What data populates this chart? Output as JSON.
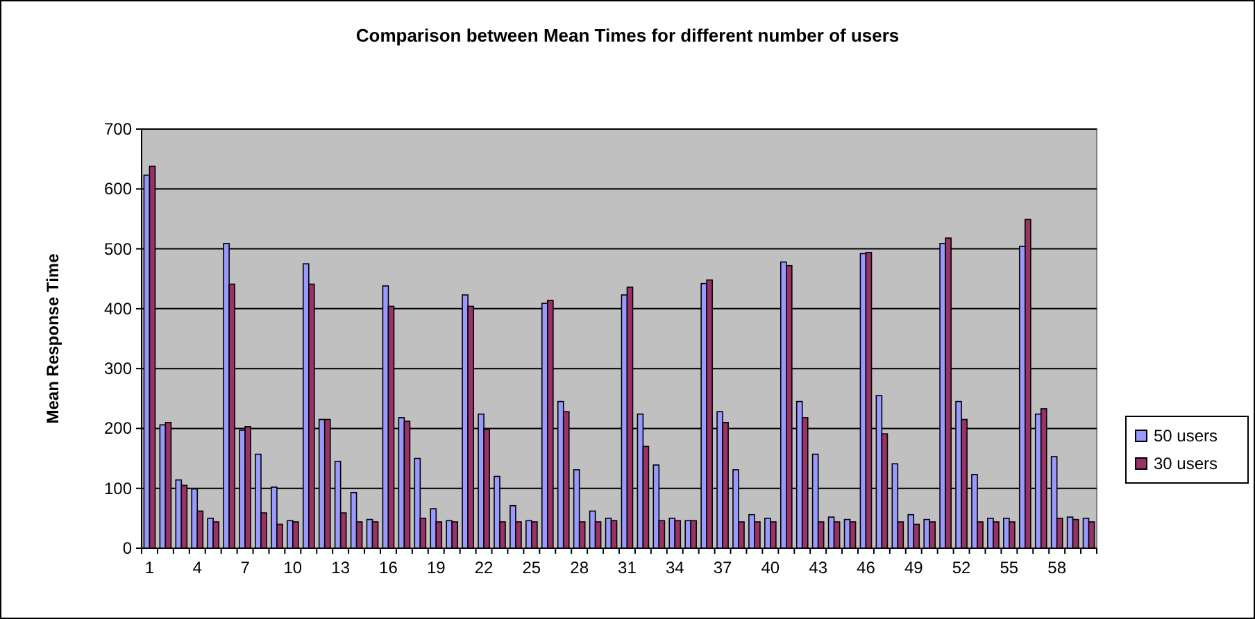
{
  "chart_data": {
    "type": "bar",
    "title": "Comparison between Mean Times for different number of users",
    "ylabel": "Mean Response Time",
    "categories": [
      "1",
      null,
      null,
      "4",
      null,
      null,
      "7",
      null,
      null,
      "10",
      null,
      null,
      "13",
      null,
      null,
      "16",
      null,
      null,
      "19",
      null,
      null,
      "22",
      null,
      null,
      "25",
      null,
      null,
      "28",
      null,
      null,
      "31",
      null,
      null,
      "34",
      null,
      null,
      "37",
      null,
      null,
      "40",
      null,
      null,
      "43",
      null,
      null,
      "46",
      null,
      null,
      "49",
      null,
      null,
      "52",
      null,
      null,
      "55",
      null,
      null,
      "58",
      null,
      null
    ],
    "series": [
      {
        "name": "50 users",
        "color": "#9999ff",
        "values": [
          623,
          206,
          114,
          99,
          50,
          509,
          197,
          157,
          102,
          46,
          475,
          215,
          145,
          93,
          48,
          438,
          218,
          150,
          66,
          46,
          423,
          224,
          120,
          71,
          46,
          409,
          245,
          131,
          62,
          50,
          423,
          224,
          139,
          50,
          46,
          442,
          228,
          131,
          56,
          50,
          478,
          245,
          157,
          52,
          48,
          492,
          255,
          141,
          56,
          48,
          509,
          245,
          123,
          50,
          50,
          504,
          224,
          153,
          52,
          50
        ]
      },
      {
        "name": "30 users",
        "color": "#993366",
        "values": [
          638,
          210,
          105,
          62,
          44,
          441,
          203,
          59,
          40,
          44,
          441,
          215,
          59,
          44,
          44,
          404,
          212,
          50,
          44,
          44,
          404,
          199,
          44,
          44,
          44,
          414,
          228,
          44,
          44,
          46,
          436,
          170,
          46,
          46,
          46,
          448,
          210,
          44,
          44,
          44,
          472,
          218,
          44,
          44,
          44,
          494,
          191,
          44,
          40,
          44,
          518,
          215,
          44,
          44,
          44,
          549,
          233,
          50,
          48,
          44
        ]
      }
    ],
    "ylim": [
      0,
      700
    ],
    "yticks": [
      0,
      100,
      200,
      300,
      400,
      500,
      600,
      700
    ],
    "grid": "y",
    "legend": "right"
  }
}
